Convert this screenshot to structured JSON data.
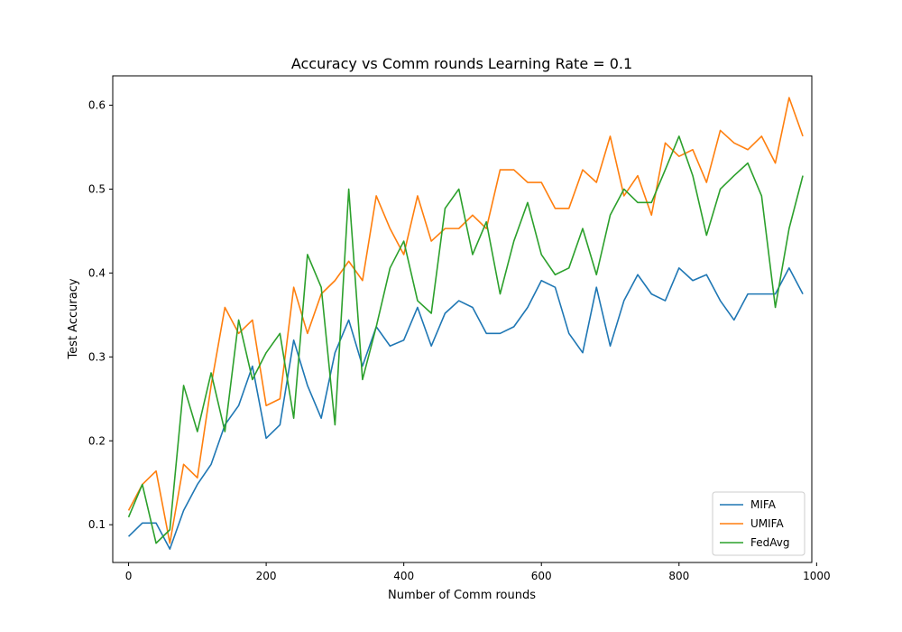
{
  "chart_data": {
    "type": "line",
    "title": "Accuracy vs Comm rounds Learning Rate = 0.1",
    "xlabel": "Number of Comm rounds",
    "ylabel": "Test Accuracy",
    "xlim": [
      -23,
      993
    ],
    "ylim": [
      0.055,
      0.635
    ],
    "xticks": [
      0,
      200,
      400,
      600,
      800,
      1000
    ],
    "yticks": [
      0.1,
      0.2,
      0.3,
      0.4,
      0.5,
      0.6
    ],
    "ytick_labels": [
      "0.1",
      "0.2",
      "0.3",
      "0.4",
      "0.5",
      "0.6"
    ],
    "grid": false,
    "legend_position": "lower-right",
    "x": [
      0,
      20,
      40,
      60,
      80,
      100,
      120,
      140,
      160,
      180,
      200,
      220,
      240,
      260,
      280,
      300,
      320,
      340,
      360,
      380,
      400,
      420,
      440,
      460,
      480,
      500,
      520,
      540,
      560,
      580,
      600,
      620,
      640,
      660,
      680,
      700,
      720,
      740,
      760,
      780,
      800,
      820,
      840,
      860,
      880,
      900,
      920,
      940,
      960,
      980
    ],
    "series": [
      {
        "name": "MIFA",
        "color": "#1f77b4",
        "values": [
          0.086,
          0.102,
          0.102,
          0.071,
          0.117,
          0.148,
          0.172,
          0.219,
          0.242,
          0.289,
          0.203,
          0.219,
          0.32,
          0.266,
          0.227,
          0.305,
          0.344,
          0.289,
          0.336,
          0.313,
          0.32,
          0.359,
          0.313,
          0.352,
          0.367,
          0.359,
          0.328,
          0.328,
          0.336,
          0.359,
          0.391,
          0.383,
          0.328,
          0.305,
          0.383,
          0.313,
          0.367,
          0.398,
          0.375,
          0.367,
          0.406,
          0.391,
          0.398,
          0.367,
          0.344,
          0.375,
          0.375,
          0.375,
          0.406,
          0.375
        ]
      },
      {
        "name": "UMIFA",
        "color": "#ff7f0e",
        "values": [
          0.117,
          0.148,
          0.164,
          0.078,
          0.172,
          0.156,
          0.266,
          0.359,
          0.328,
          0.344,
          0.242,
          0.25,
          0.383,
          0.328,
          0.375,
          0.391,
          0.414,
          0.391,
          0.492,
          0.453,
          0.422,
          0.492,
          0.438,
          0.453,
          0.453,
          0.469,
          0.453,
          0.523,
          0.523,
          0.508,
          0.508,
          0.477,
          0.477,
          0.523,
          0.508,
          0.563,
          0.492,
          0.516,
          0.469,
          0.555,
          0.539,
          0.547,
          0.508,
          0.57,
          0.555,
          0.547,
          0.563,
          0.531,
          0.609,
          0.563
        ]
      },
      {
        "name": "FedAvg",
        "color": "#2ca02c",
        "values": [
          0.109,
          0.148,
          0.078,
          0.094,
          0.266,
          0.211,
          0.281,
          0.211,
          0.344,
          0.273,
          0.305,
          0.328,
          0.227,
          0.422,
          0.383,
          0.219,
          0.5,
          0.273,
          0.336,
          0.406,
          0.438,
          0.367,
          0.352,
          0.477,
          0.5,
          0.422,
          0.461,
          0.375,
          0.438,
          0.484,
          0.422,
          0.398,
          0.406,
          0.453,
          0.398,
          0.469,
          0.5,
          0.484,
          0.484,
          0.523,
          0.563,
          0.516,
          0.445,
          0.5,
          0.516,
          0.531,
          0.492,
          0.359,
          0.453,
          0.516
        ]
      }
    ]
  }
}
